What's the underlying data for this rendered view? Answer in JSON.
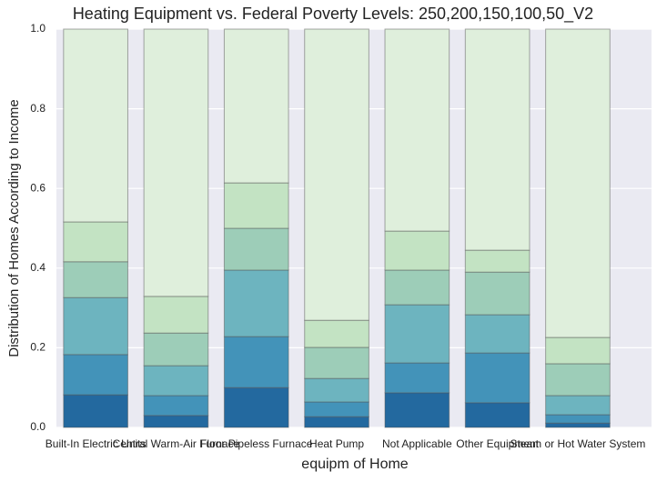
{
  "chart_data": {
    "type": "stacked_bar",
    "title": "Heating Equipment vs. Federal Poverty Levels: 250,200,150,100,50_V2",
    "x_label": "equipm of Home",
    "y_label": "Distribution of Homes According to Income",
    "categories": [
      "Built-In Electric Units",
      "Central Warm-Air Furnace",
      "Floor Pipeless Furnace",
      "Heat Pump",
      "Not Applicable",
      "Other Equipment",
      "Steam or Hot Water System"
    ],
    "series": [
      {
        "color": "#23699f",
        "values": [
          0.082,
          0.03,
          0.1,
          0.027,
          0.087,
          0.062,
          0.011
        ]
      },
      {
        "color": "#4393b9",
        "values": [
          0.101,
          0.05,
          0.128,
          0.037,
          0.075,
          0.125,
          0.021
        ]
      },
      {
        "color": "#6db4bf",
        "values": [
          0.143,
          0.075,
          0.167,
          0.059,
          0.146,
          0.096,
          0.048
        ]
      },
      {
        "color": "#9dcdb8",
        "values": [
          0.09,
          0.082,
          0.105,
          0.078,
          0.087,
          0.107,
          0.08
        ]
      },
      {
        "color": "#c3e3c3",
        "values": [
          0.1,
          0.092,
          0.114,
          0.068,
          0.098,
          0.055,
          0.066
        ]
      },
      {
        "color": "#dfefdc",
        "values": [
          0.484,
          0.671,
          0.386,
          0.731,
          0.507,
          0.555,
          0.774
        ]
      }
    ],
    "ylim": [
      0,
      1
    ],
    "yticks": [
      {
        "value": 0,
        "label": "0.0"
      },
      0.2,
      0.4,
      0.6,
      0.8,
      {
        "value": 1,
        "label": "1.0"
      }
    ],
    "grid": true
  }
}
